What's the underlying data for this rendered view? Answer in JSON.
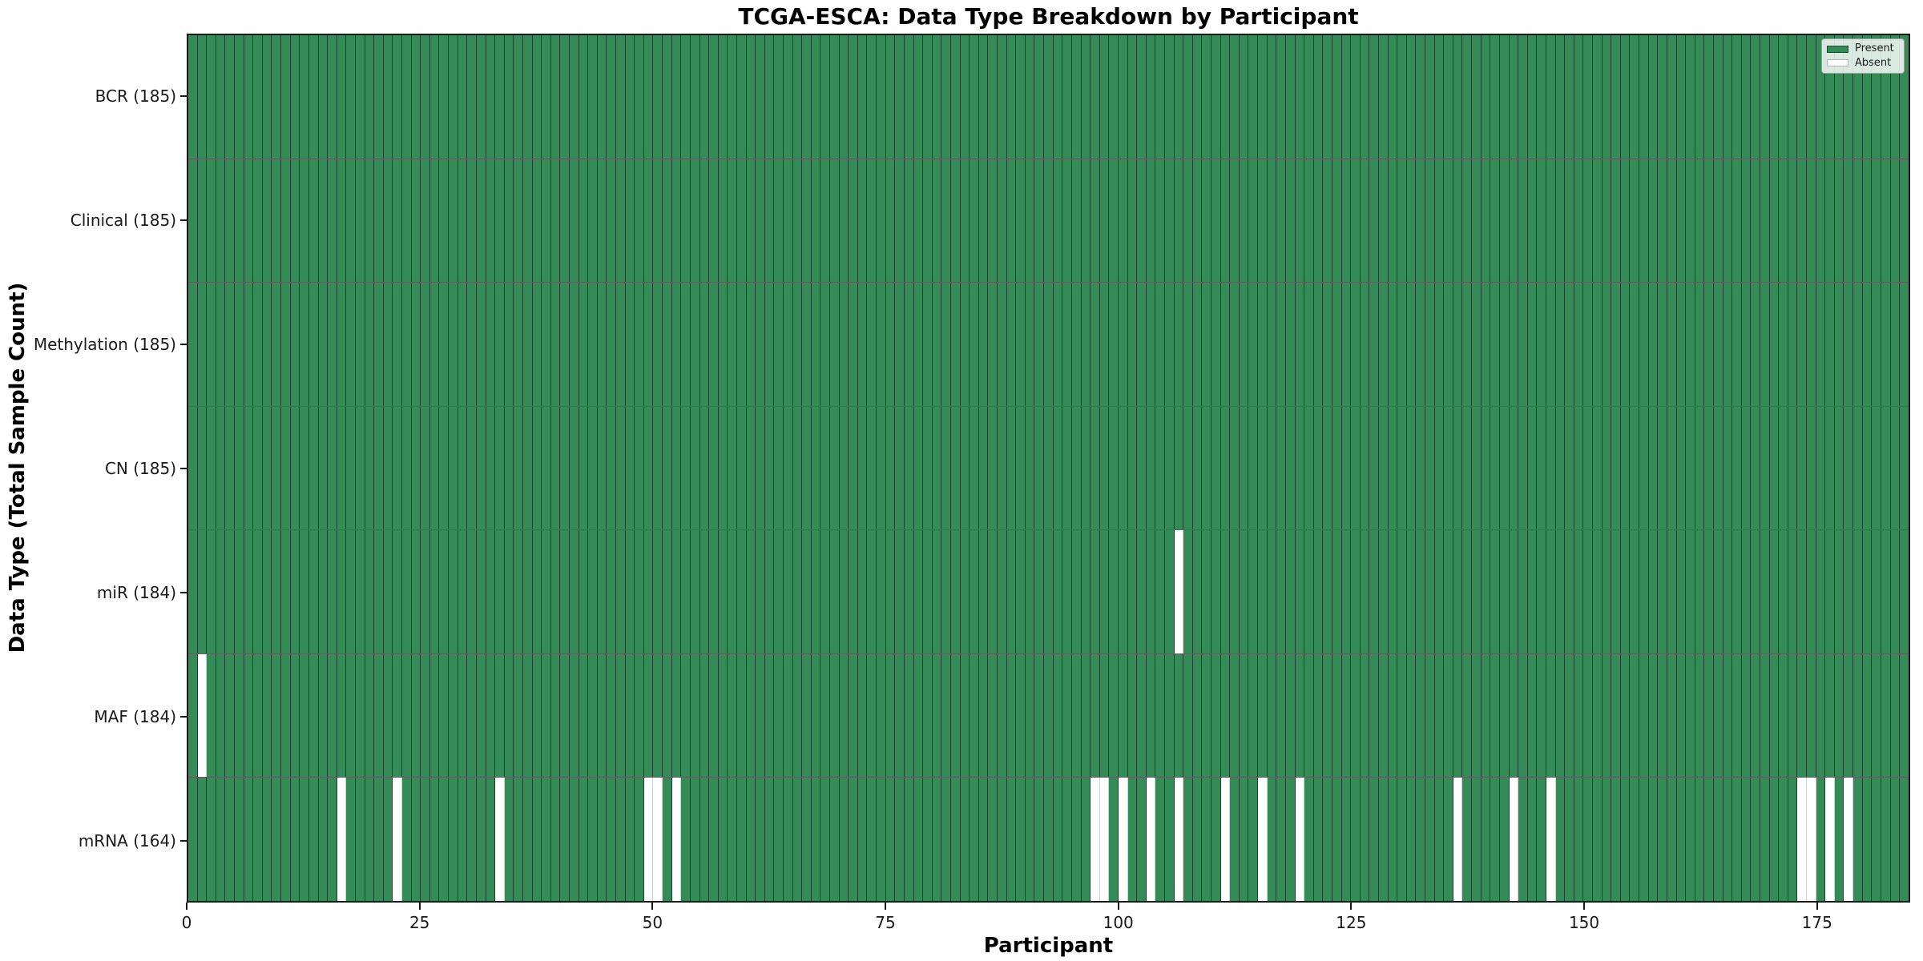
{
  "colors": {
    "present": "#348b58",
    "absent": "#ffffff",
    "grid_line": "rgba(0,0,0,0.5)",
    "spine": "#1a1a1a"
  },
  "chart_data": {
    "type": "heatmap",
    "title": "TCGA-ESCA: Data Type Breakdown by Participant",
    "xlabel": "Participant",
    "ylabel": "Data Type (Total Sample Count)",
    "n_participants": 185,
    "x_ticks": [
      0,
      25,
      50,
      75,
      100,
      125,
      150,
      175
    ],
    "xlim": [
      0,
      185
    ],
    "grid": "cell-edges",
    "legend_position": "upper-right",
    "value_encoding": {
      "present": 1,
      "absent": 0
    },
    "rows": [
      {
        "label": "BCR (185)",
        "data_type": "BCR",
        "total_present": 185,
        "absent_participants": []
      },
      {
        "label": "Clinical (185)",
        "data_type": "Clinical",
        "total_present": 185,
        "absent_participants": []
      },
      {
        "label": "Methylation (185)",
        "data_type": "Methylation",
        "total_present": 185,
        "absent_participants": []
      },
      {
        "label": "CN (185)",
        "data_type": "CN",
        "total_present": 185,
        "absent_participants": []
      },
      {
        "label": "miR (184)",
        "data_type": "miR",
        "total_present": 184,
        "absent_participants": [
          106
        ]
      },
      {
        "label": "MAF (184)",
        "data_type": "MAF",
        "total_present": 184,
        "absent_participants": [
          1
        ]
      },
      {
        "label": "mRNA (164)",
        "data_type": "mRNA",
        "total_present": 164,
        "absent_participants": [
          16,
          22,
          33,
          49,
          50,
          52,
          97,
          98,
          100,
          103,
          106,
          111,
          115,
          119,
          136,
          142,
          146,
          173,
          174,
          176,
          178
        ]
      }
    ],
    "legend": [
      {
        "label": "Present",
        "color": "#348b58"
      },
      {
        "label": "Absent",
        "color": "#ffffff"
      }
    ]
  }
}
